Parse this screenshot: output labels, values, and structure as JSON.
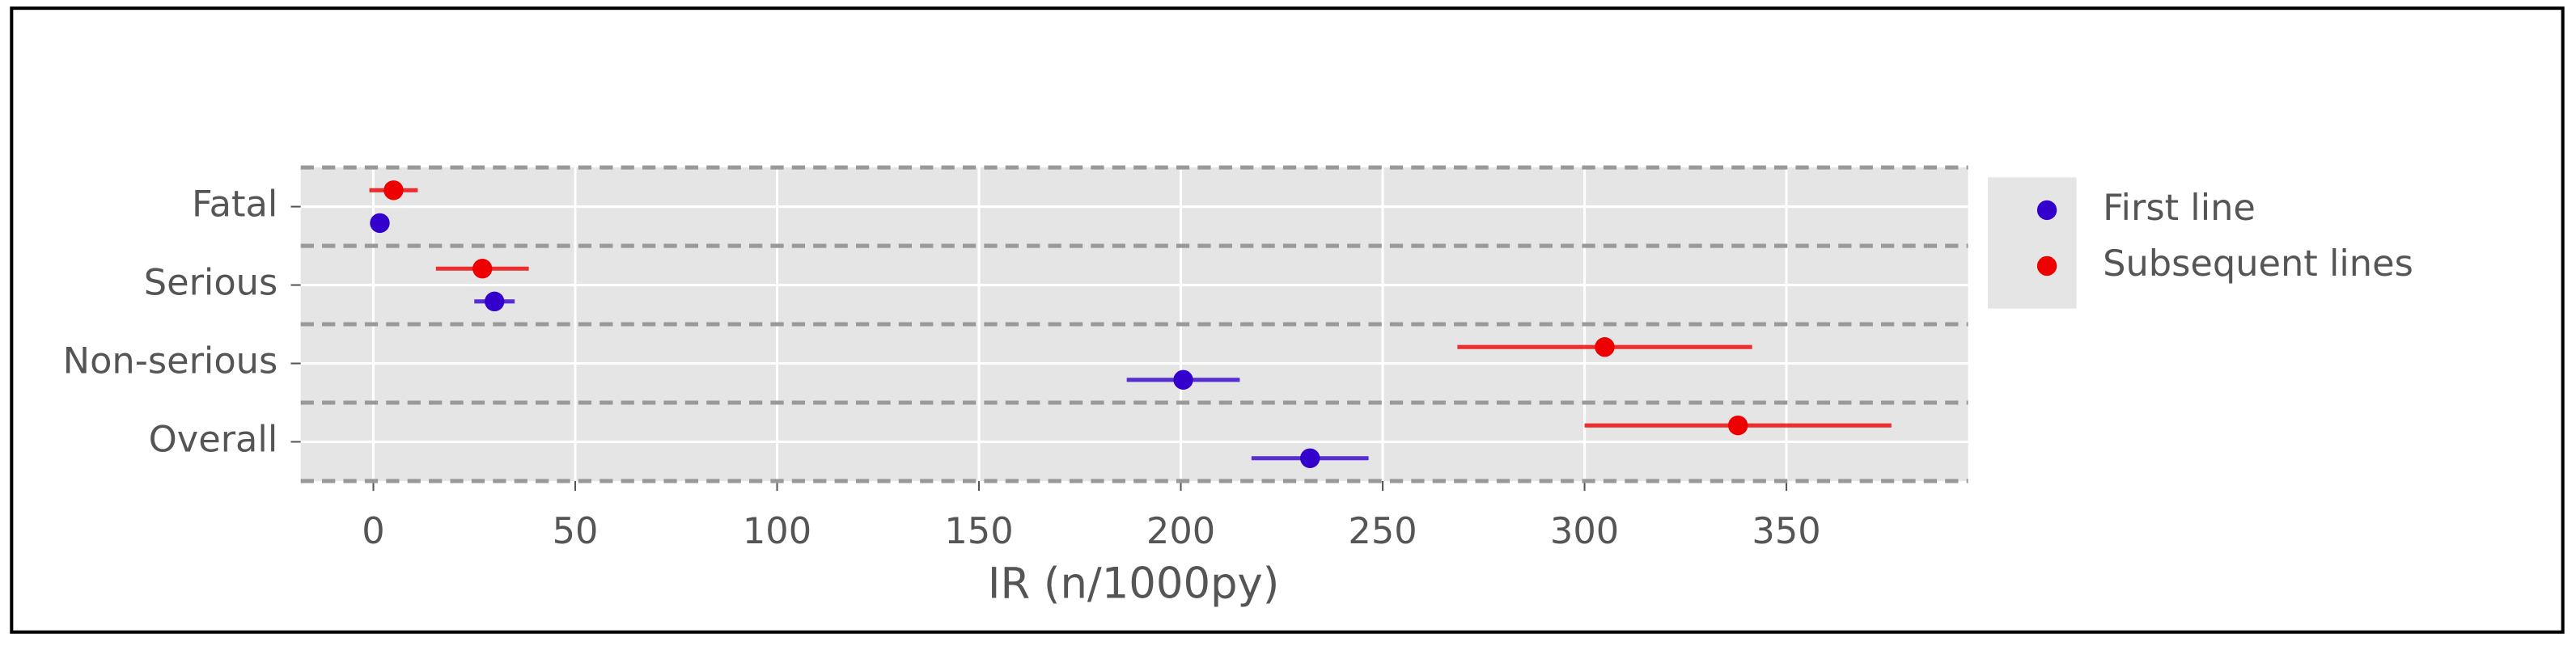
{
  "chart_data": {
    "type": "scatter",
    "x_label": "IR (n/1000py)",
    "categories": [
      "Fatal",
      "Serious",
      "Non-serious",
      "Overall"
    ],
    "series": [
      {
        "name": "First line",
        "color": "#3300cc",
        "values": [
          1.6,
          30,
          200.6,
          232
        ],
        "errors": [
          1,
          5,
          14,
          14.5
        ]
      },
      {
        "name": "Subsequent lines",
        "color": "#ee0000",
        "values": [
          5,
          27,
          305,
          338
        ],
        "errors": [
          6,
          11.5,
          36.5,
          38
        ]
      }
    ],
    "xlim": [
      -18,
      395
    ],
    "xticks": [
      0,
      50,
      100,
      150,
      200,
      250,
      300,
      350
    ],
    "grid": true,
    "legend": "right"
  }
}
